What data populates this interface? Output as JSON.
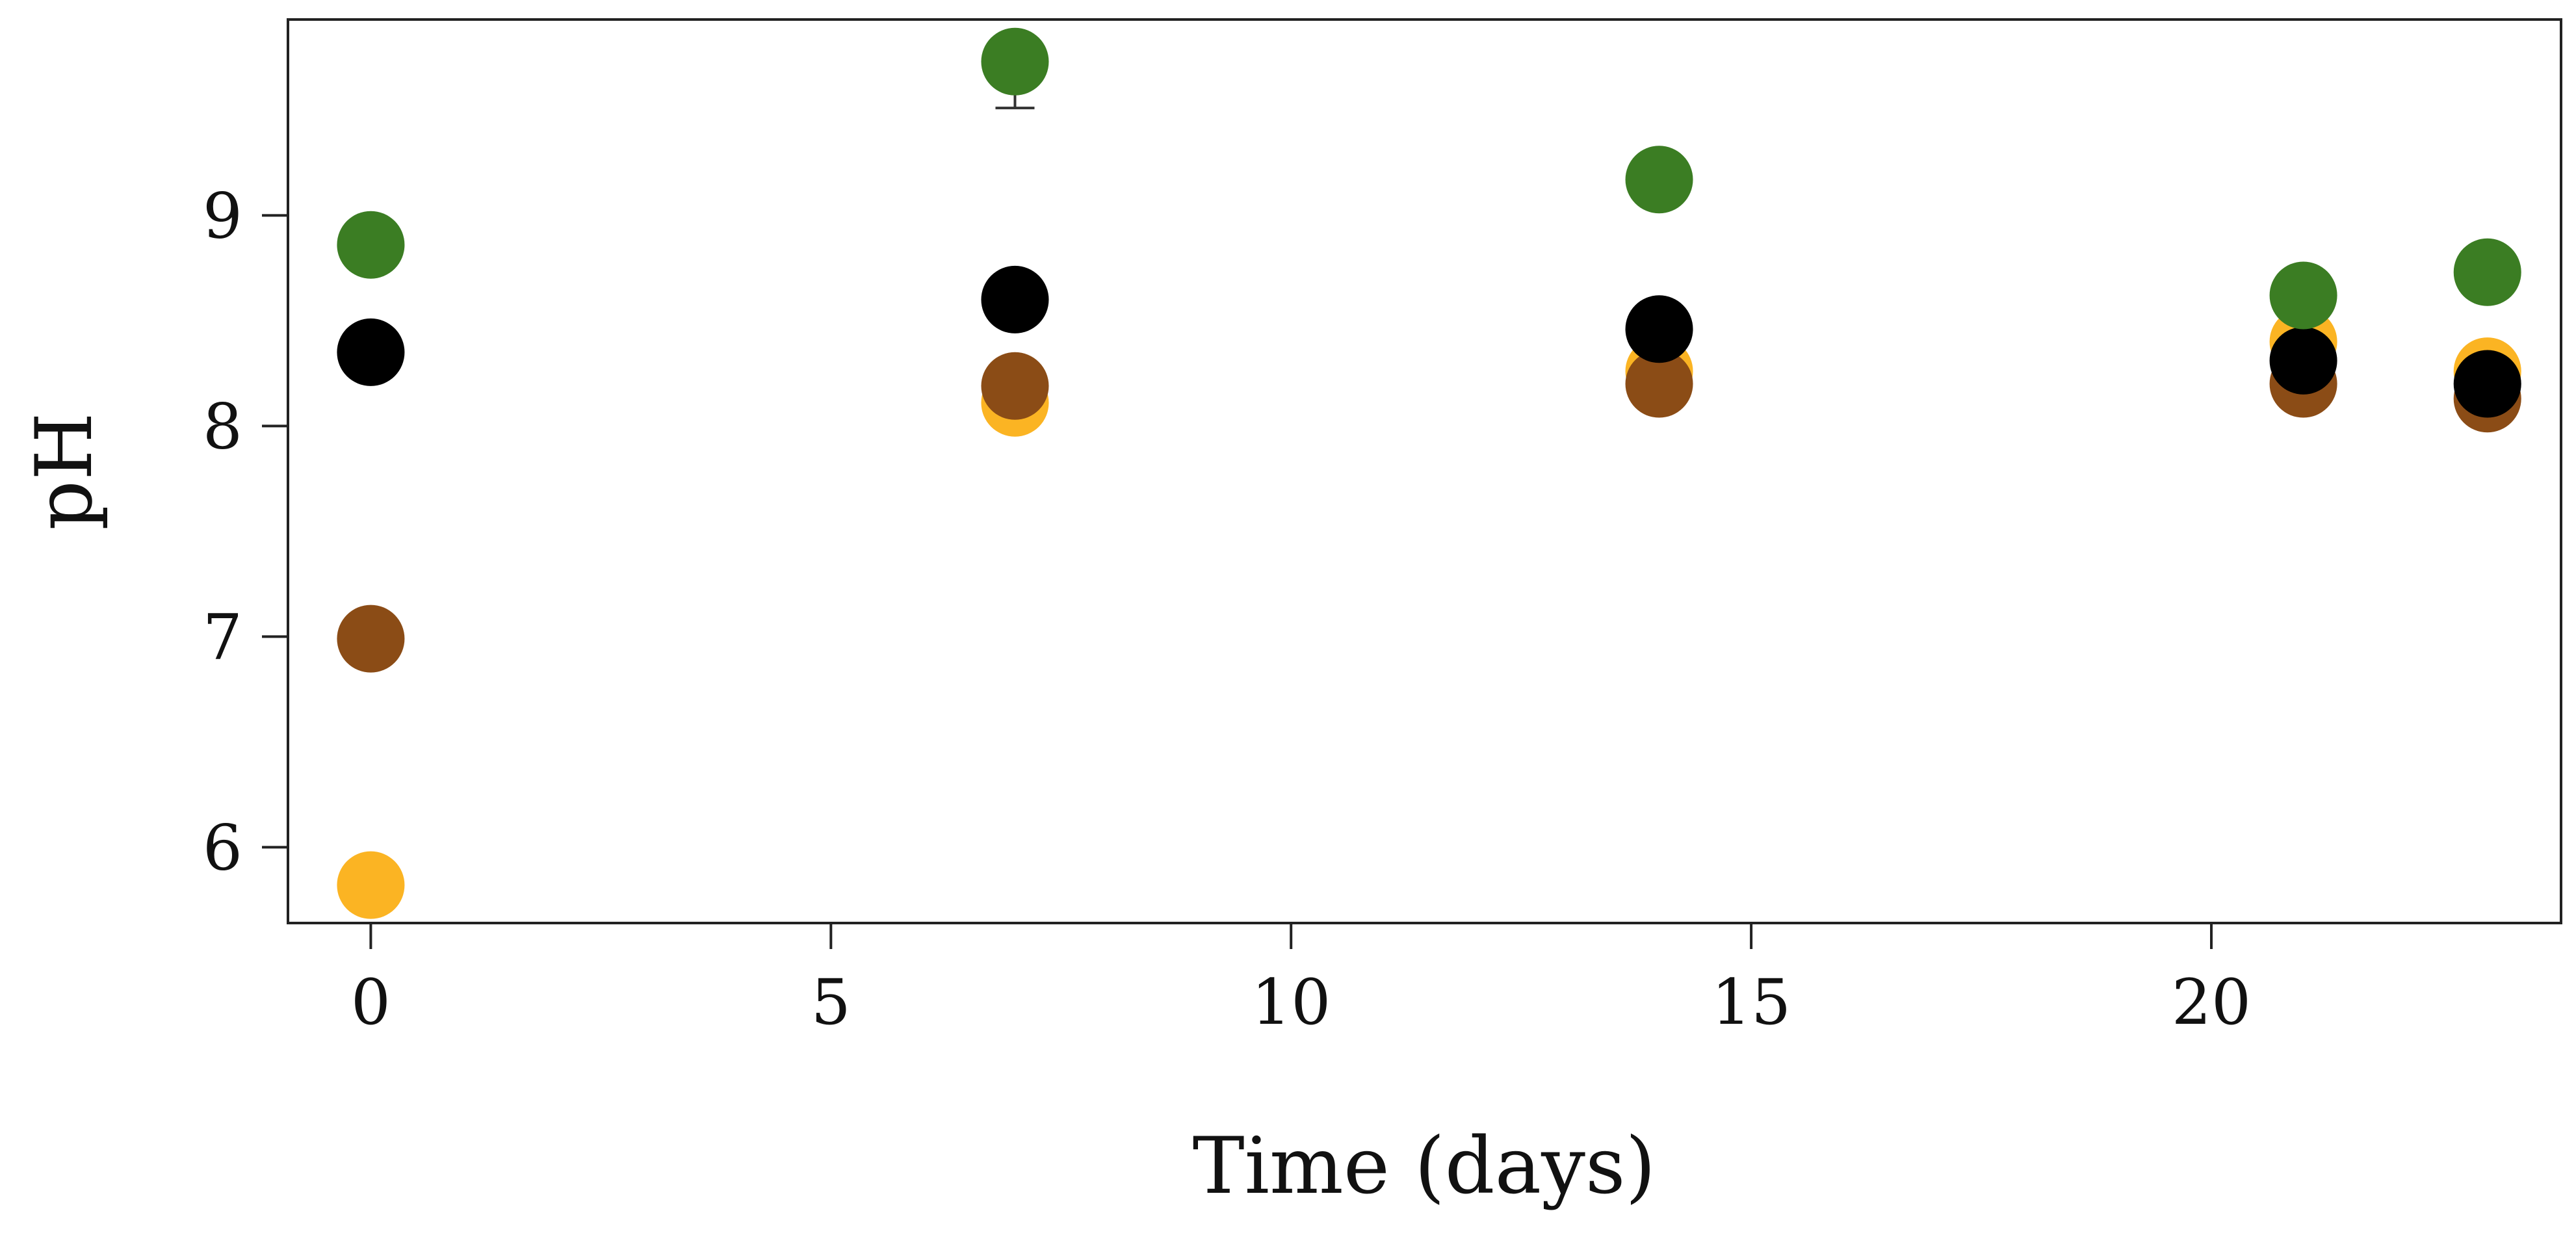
{
  "chart_data": {
    "type": "scatter",
    "title": "",
    "xlabel": "Time (days)",
    "ylabel": "pH",
    "xlim": [
      -0.9,
      23.8
    ],
    "ylim": [
      5.64,
      9.93
    ],
    "xticks": [
      0,
      5,
      10,
      15,
      20
    ],
    "yticks": [
      6,
      7,
      8,
      9
    ],
    "grid": false,
    "legend": "none",
    "series": [
      {
        "color": "#fbb423",
        "x": [
          0,
          7,
          14,
          21,
          23
        ],
        "y": [
          5.82,
          8.11,
          8.26,
          8.4,
          8.26
        ]
      },
      {
        "color": "#8b4c16",
        "x": [
          0,
          7,
          14,
          21,
          23
        ],
        "y": [
          6.99,
          8.19,
          8.2,
          8.2,
          8.13
        ]
      },
      {
        "color": "#000000",
        "x": [
          0,
          7,
          14,
          21,
          23
        ],
        "y": [
          8.35,
          8.6,
          8.46,
          8.31,
          8.2
        ]
      },
      {
        "color": "#3b7d23",
        "x": [
          0,
          7,
          14,
          21,
          23
        ],
        "y": [
          8.86,
          9.73,
          9.17,
          8.62,
          8.73
        ],
        "error": [
          0,
          0.22,
          0,
          0,
          0
        ]
      }
    ]
  }
}
